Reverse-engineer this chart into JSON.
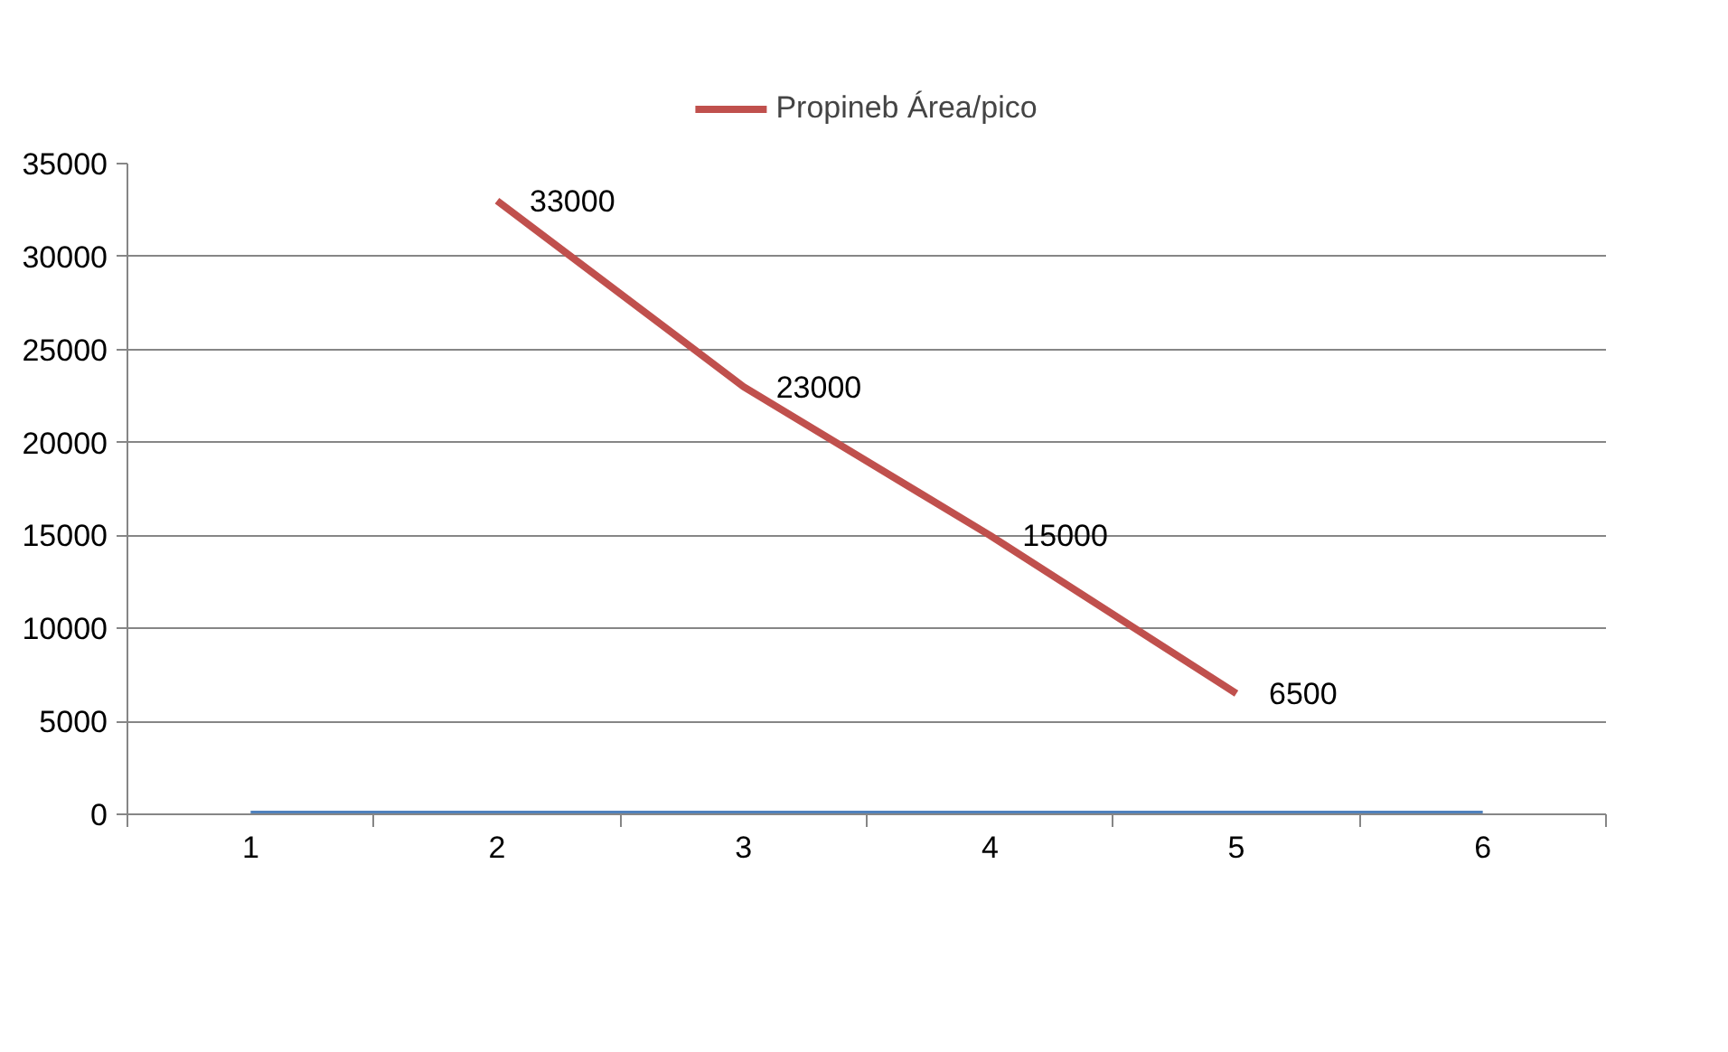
{
  "chart_data": {
    "type": "line",
    "categories": [
      "1",
      "2",
      "3",
      "4",
      "5",
      "6"
    ],
    "series": [
      {
        "name": "Propineb Área/pico",
        "color": "#c0504d",
        "values": [
          null,
          33000,
          23000,
          15000,
          6500,
          null
        ],
        "value_labels": [
          null,
          "33000",
          "23000",
          "15000",
          "6500",
          null
        ]
      },
      {
        "color": "#4f81bd",
        "values": [
          0,
          0,
          0,
          0,
          0,
          0
        ]
      }
    ],
    "ylim": [
      0,
      35000
    ],
    "yticks": [
      0,
      5000,
      10000,
      15000,
      20000,
      25000,
      30000,
      35000
    ],
    "grid": "y",
    "legend": "top",
    "line_style": "solid",
    "marker": "none"
  }
}
